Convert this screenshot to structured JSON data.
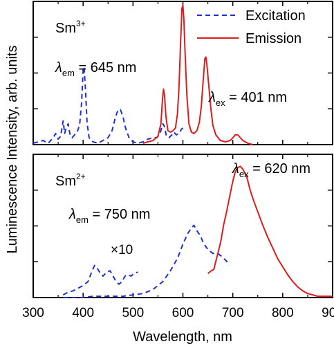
{
  "figure": {
    "ylabel": "Luminescence Intensity, arb. units",
    "xlabel": "Wavelength, nm",
    "x_ticks": [
      "300",
      "400",
      "500",
      "600",
      "700",
      "800",
      "900"
    ]
  },
  "colors": {
    "excitation": "#1f2fd0",
    "emission": "#e01b1b",
    "axes": "#000000"
  },
  "chart_data": [
    {
      "type": "line",
      "panel": "top",
      "title": "",
      "ion": {
        "base": "Sm",
        "sup": "3+"
      },
      "xlabel": "Wavelength, nm",
      "ylabel": "Luminescence Intensity, arb. units",
      "xlim": [
        300,
        900
      ],
      "ylim": [
        0,
        1.03
      ],
      "grid": false,
      "legend": {
        "position": "top-right",
        "entries": [
          "Excitation",
          "Emission"
        ]
      },
      "annotations": [
        {
          "sym": "λ",
          "sub": "em",
          "text": " = 645 nm"
        },
        {
          "sym": "λ",
          "sub": "ex",
          "text": " = 401 nm"
        }
      ],
      "series": [
        {
          "name": "Excitation",
          "style": "dashed",
          "color": "#1f2fd0",
          "points": [
            [
              300,
              0.01
            ],
            [
              310,
              0.02
            ],
            [
              320,
              0.03
            ],
            [
              330,
              0.01
            ],
            [
              340,
              0.05
            ],
            [
              345,
              0.08
            ],
            [
              350,
              0.04
            ],
            [
              355,
              0.06
            ],
            [
              360,
              0.17
            ],
            [
              363,
              0.08
            ],
            [
              366,
              0.12
            ],
            [
              370,
              0.15
            ],
            [
              374,
              0.07
            ],
            [
              378,
              0.05
            ],
            [
              383,
              0.07
            ],
            [
              388,
              0.09
            ],
            [
              393,
              0.14
            ],
            [
              397,
              0.3
            ],
            [
              400,
              0.54
            ],
            [
              402,
              0.56
            ],
            [
              405,
              0.38
            ],
            [
              408,
              0.16
            ],
            [
              412,
              0.05
            ],
            [
              420,
              0.02
            ],
            [
              430,
              0.01
            ],
            [
              440,
              0.03
            ],
            [
              450,
              0.05
            ],
            [
              458,
              0.1
            ],
            [
              465,
              0.2
            ],
            [
              470,
              0.25
            ],
            [
              475,
              0.25
            ],
            [
              480,
              0.2
            ],
            [
              485,
              0.12
            ],
            [
              492,
              0.05
            ],
            [
              500,
              0.02
            ],
            [
              510,
              0.01
            ],
            [
              520,
              0.02
            ],
            [
              530,
              0.04
            ],
            [
              540,
              0.05
            ],
            [
              548,
              0.05
            ],
            [
              555,
              0.09
            ],
            [
              560,
              0.15
            ],
            [
              563,
              0.13
            ],
            [
              567,
              0.06
            ],
            [
              572,
              0.05
            ],
            [
              578,
              0.07
            ],
            [
              582,
              0.09
            ],
            [
              587,
              0.07
            ],
            [
              592,
              0.08
            ],
            [
              597,
              0.11
            ],
            [
              600,
              0.12
            ]
          ]
        },
        {
          "name": "Emission",
          "style": "solid",
          "color": "#e01b1b",
          "points": [
            [
              520,
              0.01
            ],
            [
              530,
              0.02
            ],
            [
              540,
              0.03
            ],
            [
              550,
              0.06
            ],
            [
              556,
              0.15
            ],
            [
              559,
              0.32
            ],
            [
              561,
              0.4
            ],
            [
              563,
              0.36
            ],
            [
              566,
              0.2
            ],
            [
              570,
              0.1
            ],
            [
              575,
              0.09
            ],
            [
              580,
              0.1
            ],
            [
              585,
              0.12
            ],
            [
              589,
              0.22
            ],
            [
              592,
              0.4
            ],
            [
              595,
              0.7
            ],
            [
              598,
              0.98
            ],
            [
              600,
              1.0
            ],
            [
              602,
              0.9
            ],
            [
              605,
              0.6
            ],
            [
              608,
              0.35
            ],
            [
              612,
              0.15
            ],
            [
              617,
              0.09
            ],
            [
              622,
              0.08
            ],
            [
              628,
              0.1
            ],
            [
              633,
              0.16
            ],
            [
              637,
              0.28
            ],
            [
              641,
              0.48
            ],
            [
              644,
              0.62
            ],
            [
              646,
              0.63
            ],
            [
              648,
              0.58
            ],
            [
              652,
              0.42
            ],
            [
              656,
              0.26
            ],
            [
              660,
              0.14
            ],
            [
              666,
              0.07
            ],
            [
              675,
              0.03
            ],
            [
              685,
              0.02
            ],
            [
              695,
              0.03
            ],
            [
              700,
              0.05
            ],
            [
              705,
              0.07
            ],
            [
              710,
              0.07
            ],
            [
              715,
              0.05
            ],
            [
              720,
              0.03
            ],
            [
              730,
              0.01
            ],
            [
              740,
              0.0
            ]
          ]
        }
      ]
    },
    {
      "type": "line",
      "panel": "bottom",
      "title": "",
      "ion": {
        "base": "Sm",
        "sup": "2+"
      },
      "xlabel": "Wavelength, nm",
      "ylabel": "Luminescence Intensity, arb. units",
      "xlim": [
        300,
        900
      ],
      "ylim": [
        0,
        1.07
      ],
      "grid": false,
      "legend": null,
      "annotations": [
        {
          "sym": "λ",
          "sub": "em",
          "text": " = 750 nm"
        },
        {
          "sym": "λ",
          "sub": "ex",
          "text": " = 620 nm"
        },
        {
          "sym": "",
          "sub": "",
          "text": "×10"
        }
      ],
      "series": [
        {
          "name": "Excitation",
          "style": "dashed",
          "color": "#1f2fd0",
          "points": [
            [
              360,
              0.02
            ],
            [
              370,
              0.04
            ],
            [
              380,
              0.05
            ],
            [
              390,
              0.07
            ],
            [
              400,
              0.09
            ],
            [
              410,
              0.12
            ],
            [
              418,
              0.2
            ],
            [
              423,
              0.24
            ],
            [
              428,
              0.22
            ],
            [
              433,
              0.19
            ],
            [
              440,
              0.16
            ],
            [
              447,
              0.19
            ],
            [
              454,
              0.2
            ],
            [
              460,
              0.16
            ],
            [
              466,
              0.12
            ],
            [
              472,
              0.1
            ],
            [
              478,
              0.12
            ],
            [
              484,
              0.16
            ],
            [
              490,
              0.17
            ],
            [
              496,
              0.16
            ],
            [
              502,
              0.18
            ],
            [
              510,
              0.19
            ]
          ]
        },
        {
          "name": "Excitation",
          "style": "dashed",
          "color": "#1f2fd0",
          "points": [
            [
              360,
              0.0
            ],
            [
              380,
              0.0
            ],
            [
              400,
              0.0
            ],
            [
              420,
              0.01
            ],
            [
              440,
              0.01
            ],
            [
              460,
              0.01
            ],
            [
              480,
              0.01
            ],
            [
              500,
              0.02
            ],
            [
              520,
              0.03
            ],
            [
              540,
              0.06
            ],
            [
              560,
              0.12
            ],
            [
              575,
              0.2
            ],
            [
              590,
              0.3
            ],
            [
              600,
              0.4
            ],
            [
              610,
              0.48
            ],
            [
              617,
              0.52
            ],
            [
              622,
              0.54
            ],
            [
              628,
              0.5
            ],
            [
              635,
              0.46
            ],
            [
              642,
              0.4
            ],
            [
              650,
              0.36
            ],
            [
              660,
              0.33
            ],
            [
              670,
              0.33
            ],
            [
              680,
              0.3
            ],
            [
              688,
              0.27
            ],
            [
              692,
              0.24
            ]
          ]
        },
        {
          "name": "Emission",
          "style": "solid",
          "color": "#e01b1b",
          "points": [
            [
              650,
              0.18
            ],
            [
              657,
              0.2
            ],
            [
              662,
              0.21
            ],
            [
              666,
              0.27
            ],
            [
              670,
              0.33
            ],
            [
              676,
              0.42
            ],
            [
              682,
              0.55
            ],
            [
              688,
              0.65
            ],
            [
              695,
              0.78
            ],
            [
              700,
              0.87
            ],
            [
              705,
              0.94
            ],
            [
              710,
              0.97
            ],
            [
              715,
              0.98
            ],
            [
              720,
              0.96
            ],
            [
              728,
              0.9
            ],
            [
              735,
              0.8
            ],
            [
              742,
              0.72
            ],
            [
              750,
              0.64
            ],
            [
              760,
              0.54
            ],
            [
              770,
              0.45
            ],
            [
              780,
              0.37
            ],
            [
              790,
              0.29
            ],
            [
              800,
              0.23
            ],
            [
              810,
              0.17
            ],
            [
              820,
              0.12
            ],
            [
              830,
              0.08
            ],
            [
              840,
              0.05
            ],
            [
              850,
              0.03
            ],
            [
              860,
              0.02
            ],
            [
              870,
              0.01
            ],
            [
              880,
              0.01
            ],
            [
              890,
              0.01
            ],
            [
              900,
              0.01
            ]
          ]
        }
      ]
    }
  ]
}
